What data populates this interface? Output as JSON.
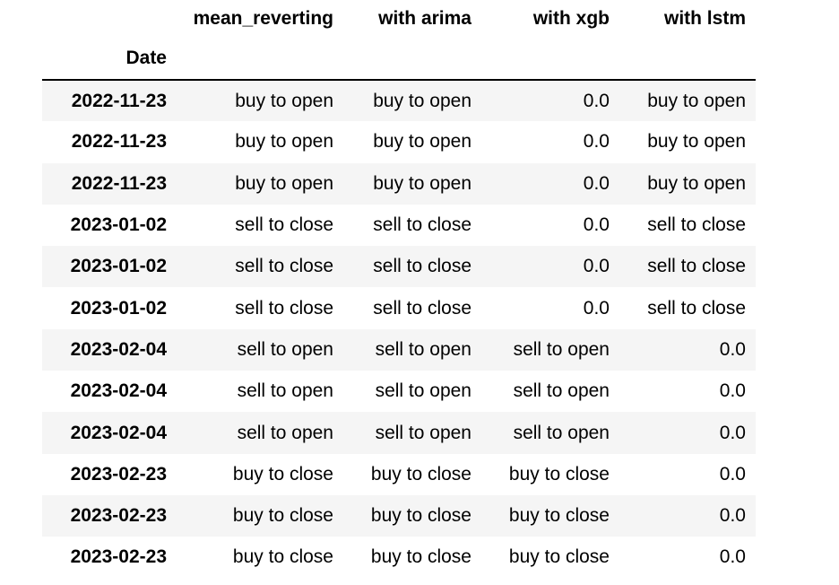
{
  "table": {
    "index_name": "Date",
    "columns": [
      "mean_reverting",
      "with arima",
      "with xgb",
      "with lstm"
    ],
    "rows": [
      {
        "date": "2022-11-23",
        "cells": [
          "buy to open",
          "buy to open",
          "0.0",
          "buy to open"
        ]
      },
      {
        "date": "2022-11-23",
        "cells": [
          "buy to open",
          "buy to open",
          "0.0",
          "buy to open"
        ]
      },
      {
        "date": "2022-11-23",
        "cells": [
          "buy to open",
          "buy to open",
          "0.0",
          "buy to open"
        ]
      },
      {
        "date": "2023-01-02",
        "cells": [
          "sell to close",
          "sell to close",
          "0.0",
          "sell to close"
        ]
      },
      {
        "date": "2023-01-02",
        "cells": [
          "sell to close",
          "sell to close",
          "0.0",
          "sell to close"
        ]
      },
      {
        "date": "2023-01-02",
        "cells": [
          "sell to close",
          "sell to close",
          "0.0",
          "sell to close"
        ]
      },
      {
        "date": "2023-02-04",
        "cells": [
          "sell to open",
          "sell to open",
          "sell to open",
          "0.0"
        ]
      },
      {
        "date": "2023-02-04",
        "cells": [
          "sell to open",
          "sell to open",
          "sell to open",
          "0.0"
        ]
      },
      {
        "date": "2023-02-04",
        "cells": [
          "sell to open",
          "sell to open",
          "sell to open",
          "0.0"
        ]
      },
      {
        "date": "2023-02-23",
        "cells": [
          "buy to close",
          "buy to close",
          "buy to close",
          "0.0"
        ]
      },
      {
        "date": "2023-02-23",
        "cells": [
          "buy to close",
          "buy to close",
          "buy to close",
          "0.0"
        ]
      },
      {
        "date": "2023-02-23",
        "cells": [
          "buy to close",
          "buy to close",
          "buy to close",
          "0.0"
        ]
      }
    ],
    "colors": {
      "stripe": "#f5f5f5",
      "header_rule": "#000000"
    }
  }
}
